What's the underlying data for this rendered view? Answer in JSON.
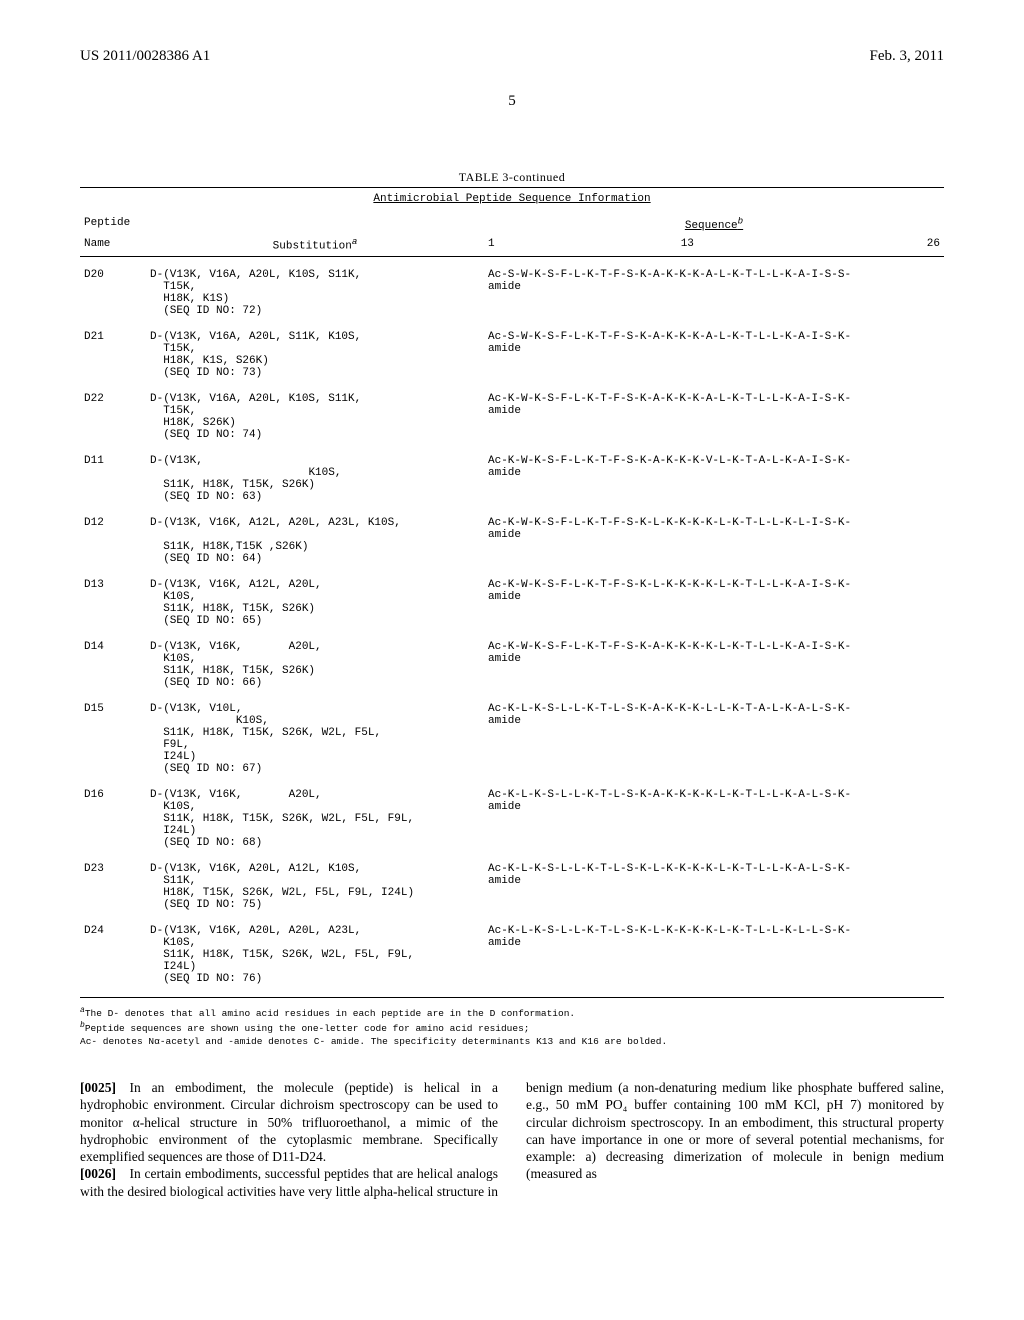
{
  "header": {
    "left": "US 2011/0028386 A1",
    "right": "Feb. 3, 2011"
  },
  "page_number": "5",
  "table": {
    "caption": "TABLE 3-continued",
    "subcaption": "Antimicrobial Peptide Sequence Information",
    "header_labels": {
      "peptide": "Peptide",
      "sequence_b": "Sequence",
      "name": "Name",
      "substitution_a": "Substitution",
      "pos1": "1",
      "pos13": "13",
      "pos26": "26"
    },
    "rows": [
      {
        "name": "D20",
        "substitution": "D-(V13K, V16A, A20L, K10S, S11K,\n  T15K,\n  H18K, K1S)\n  (SEQ ID NO: 72)",
        "sequence": "Ac-S-W-K-S-F-L-K-T-F-S-K-A-K-K-K-A-L-K-T-L-L-K-A-I-S-S-\namide"
      },
      {
        "name": "D21",
        "substitution": "D-(V13K, V16A, A20L, S11K, K10S,\n  T15K,\n  H18K, K1S, S26K)\n  (SEQ ID NO: 73)",
        "sequence": "Ac-S-W-K-S-F-L-K-T-F-S-K-A-K-K-K-A-L-K-T-L-L-K-A-I-S-K-\namide"
      },
      {
        "name": "D22",
        "substitution": "D-(V13K, V16A, A20L, K10S, S11K,\n  T15K,\n  H18K, S26K)\n  (SEQ ID NO: 74)",
        "sequence": "Ac-K-W-K-S-F-L-K-T-F-S-K-A-K-K-K-A-L-K-T-L-L-K-A-I-S-K-\namide"
      },
      {
        "name": "D11",
        "substitution": "D-(V13K,\n                        K10S,\n  S11K, H18K, T15K, S26K)\n  (SEQ ID NO: 63)",
        "sequence": "Ac-K-W-K-S-F-L-K-T-F-S-K-A-K-K-K-V-L-K-T-A-L-K-A-I-S-K-\namide"
      },
      {
        "name": "D12",
        "substitution": "D-(V13K, V16K, A12L, A20L, A23L, K10S,\n\n  S11K, H18K,T15K ,S26K)\n  (SEQ ID NO: 64)",
        "sequence": "Ac-K-W-K-S-F-L-K-T-F-S-K-L-K-K-K-K-L-K-T-L-L-K-L-I-S-K-\namide"
      },
      {
        "name": "D13",
        "substitution": "D-(V13K, V16K, A12L, A20L,\n  K10S,\n  S11K, H18K, T15K, S26K)\n  (SEQ ID NO: 65)",
        "sequence": "Ac-K-W-K-S-F-L-K-T-F-S-K-L-K-K-K-K-L-K-T-L-L-K-A-I-S-K-\namide"
      },
      {
        "name": "D14",
        "substitution": "D-(V13K, V16K,       A20L,\n  K10S,\n  S11K, H18K, T15K, S26K)\n  (SEQ ID NO: 66)",
        "sequence": "Ac-K-W-K-S-F-L-K-T-F-S-K-A-K-K-K-K-L-K-T-L-L-K-A-I-S-K-\namide"
      },
      {
        "name": "D15",
        "substitution": "D-(V13K, V10L,\n             K10S,\n  S11K, H18K, T15K, S26K, W2L, F5L,\n  F9L,\n  I24L)\n  (SEQ ID NO: 67)",
        "sequence": "Ac-K-L-K-S-L-L-K-T-L-S-K-A-K-K-K-L-L-K-T-A-L-K-A-L-S-K-\namide"
      },
      {
        "name": "D16",
        "substitution": "D-(V13K, V16K,       A20L,\n  K10S,\n  S11K, H18K, T15K, S26K, W2L, F5L, F9L,\n  I24L)\n  (SEQ ID NO: 68)",
        "sequence": "Ac-K-L-K-S-L-L-K-T-L-S-K-A-K-K-K-K-L-K-T-L-L-K-A-L-S-K-\namide"
      },
      {
        "name": "D23",
        "substitution": "D-(V13K, V16K, A20L, A12L, K10S,\n  S11K,\n  H18K, T15K, S26K, W2L, F5L, F9L, I24L)\n  (SEQ ID NO: 75)",
        "sequence": "Ac-K-L-K-S-L-L-K-T-L-S-K-L-K-K-K-K-L-K-T-L-L-K-A-L-S-K-\namide"
      },
      {
        "name": "D24",
        "substitution": "D-(V13K, V16K, A20L, A20L, A23L,\n  K10S,\n  S11K, H18K, T15K, S26K, W2L, F5L, F9L,\n  I24L)\n  (SEQ ID NO: 76)",
        "sequence": "Ac-K-L-K-S-L-L-K-T-L-S-K-L-K-K-K-K-L-K-T-L-L-K-L-L-S-K-\namide"
      }
    ],
    "footnotes": {
      "a": "The D- denotes that all amino acid residues in each peptide are in the D conformation.",
      "b": "Peptide sequences are shown using the one-letter code for amino acid residues;",
      "ac": "Ac- denotes Nα-acetyl and -amide denotes C- amide. The specificity determinants K13 and K16 are bolded."
    }
  },
  "body": {
    "paragraphs": [
      {
        "num": "[0025]",
        "text": "In an embodiment, the molecule (peptide) is helical in a hydrophobic environment. Circular dichroism spectroscopy can be used to monitor α-helical structure in 50% trifluoroethanol, a mimic of the hydrophobic environment of the cytoplasmic membrane. Specifically exemplified sequences are those of D11-D24."
      },
      {
        "num": "[0026]",
        "text": "In certain embodiments, successful peptides that are helical analogs with the desired biological activities have very little alpha-helical structure in benign medium (a non-denaturing medium like phosphate buffered saline, e.g., 50 mM PO₄ buffer containing 100 mM KCl, pH 7) monitored by circular dichroism spectroscopy. In an embodiment, this structural property can have importance in one or more of several potential mechanisms, for example: a) decreasing dimerization of molecule in benign medium (measured as"
      }
    ]
  }
}
